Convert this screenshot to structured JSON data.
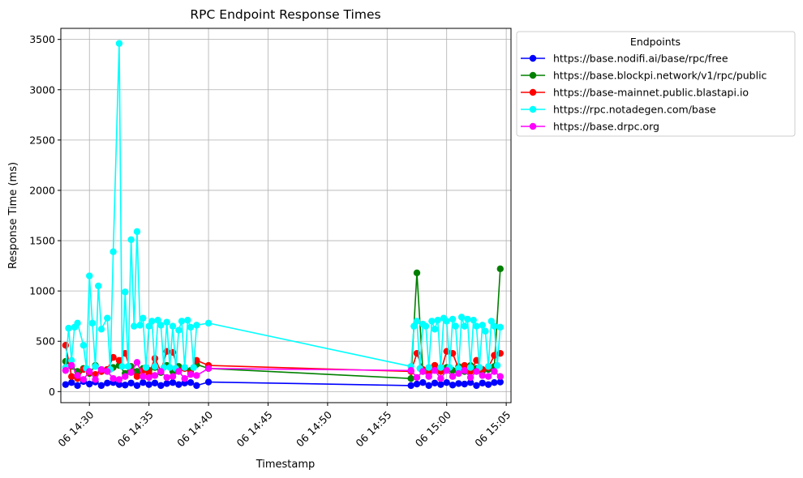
{
  "chart_data": {
    "type": "line",
    "title": "RPC Endpoint Response Times",
    "xlabel": "Timestamp",
    "ylabel": "Response Time (ms)",
    "x_ticks": [
      "06 14:30",
      "06 14:35",
      "06 14:40",
      "06 14:45",
      "06 14:50",
      "06 14:55",
      "06 15:00",
      "06 15:05"
    ],
    "y_ticks": [
      0,
      500,
      1000,
      1500,
      2000,
      2500,
      3000,
      3500
    ],
    "xlim": [
      "14:27:40",
      "14:05:00"
    ],
    "xlim_minutes": [
      867.6,
      905.4
    ],
    "ylim": [
      -110,
      3610
    ],
    "grid": true,
    "legend": {
      "title": "Endpoints",
      "placement": "outside-right-top"
    },
    "series": [
      {
        "name": "https://base.nodifi.ai/base/rpc/free",
        "color": "#0000ff",
        "x": [
          "14:28:00",
          "14:28:30",
          "14:29:00",
          "14:29:30",
          "14:30:00",
          "14:30:30",
          "14:31:00",
          "14:31:30",
          "14:32:00",
          "14:32:30",
          "14:33:00",
          "14:33:30",
          "14:34:00",
          "14:34:30",
          "14:35:00",
          "14:35:30",
          "14:36:00",
          "14:36:30",
          "14:37:00",
          "14:37:30",
          "14:38:00",
          "14:38:30",
          "14:39:00",
          "14:40:00",
          "14:57:00",
          "14:57:30",
          "14:58:00",
          "14:58:30",
          "14:59:00",
          "14:59:30",
          "15:00:00",
          "15:00:30",
          "15:01:00",
          "15:01:30",
          "15:02:00",
          "15:02:30",
          "15:03:00",
          "15:03:30",
          "15:04:00",
          "15:04:30"
        ],
        "y": [
          70,
          90,
          60,
          100,
          75,
          95,
          60,
          85,
          90,
          70,
          65,
          85,
          60,
          90,
          70,
          85,
          60,
          80,
          90,
          70,
          85,
          90,
          60,
          95,
          60,
          75,
          90,
          60,
          85,
          70,
          90,
          65,
          80,
          75,
          90,
          60,
          85,
          70,
          90,
          95
        ]
      },
      {
        "name": "https://base.blockpi.network/v1/rpc/public",
        "color": "#008000",
        "x": [
          "14:28:00",
          "14:28:30",
          "14:29:00",
          "14:29:30",
          "14:30:00",
          "14:30:30",
          "14:31:00",
          "14:31:30",
          "14:32:00",
          "14:32:30",
          "14:33:00",
          "14:33:30",
          "14:34:00",
          "14:34:30",
          "14:35:00",
          "14:35:30",
          "14:36:00",
          "14:36:30",
          "14:37:00",
          "14:37:30",
          "14:38:00",
          "14:38:30",
          "14:39:00",
          "14:40:00",
          "14:57:00",
          "14:57:30",
          "14:58:00",
          "14:58:30",
          "14:59:00",
          "14:59:30",
          "15:00:00",
          "15:00:30",
          "15:01:00",
          "15:01:30",
          "15:02:00",
          "15:02:30",
          "15:03:00",
          "15:03:30",
          "15:04:00",
          "15:04:30"
        ],
        "y": [
          300,
          250,
          200,
          230,
          180,
          260,
          200,
          220,
          240,
          260,
          180,
          250,
          200,
          230,
          210,
          240,
          190,
          260,
          200,
          250,
          230,
          210,
          270,
          230,
          130,
          1180,
          200,
          230,
          260,
          200,
          240,
          210,
          250,
          200,
          260,
          230,
          200,
          220,
          250,
          1220
        ]
      },
      {
        "name": "https://base-mainnet.public.blastapi.io",
        "color": "#ff0000",
        "x": [
          "14:28:00",
          "14:28:30",
          "14:29:00",
          "14:29:30",
          "14:30:00",
          "14:30:30",
          "14:31:00",
          "14:31:30",
          "14:32:00",
          "14:32:30",
          "14:33:00",
          "14:33:30",
          "14:34:00",
          "14:34:30",
          "14:35:00",
          "14:35:30",
          "14:36:00",
          "14:36:30",
          "14:37:00",
          "14:37:30",
          "14:38:00",
          "14:38:30",
          "14:39:00",
          "14:40:00",
          "14:57:00",
          "14:57:30",
          "14:58:00",
          "14:58:30",
          "14:59:00",
          "14:59:30",
          "15:00:00",
          "15:00:30",
          "15:01:00",
          "15:01:30",
          "15:02:00",
          "15:02:30",
          "15:03:00",
          "15:03:30",
          "15:04:00",
          "15:04:30"
        ],
        "y": [
          460,
          150,
          130,
          220,
          190,
          170,
          200,
          220,
          340,
          310,
          380,
          200,
          150,
          210,
          180,
          330,
          200,
          400,
          390,
          210,
          230,
          180,
          310,
          260,
          200,
          380,
          220,
          180,
          260,
          200,
          400,
          380,
          230,
          260,
          200,
          310,
          220,
          240,
          360,
          380
        ]
      },
      {
        "name": "https://rpc.notadegen.com/base",
        "color": "#00ffff",
        "x": [
          "14:28:00",
          "14:28:15",
          "14:28:30",
          "14:28:45",
          "14:29:00",
          "14:29:30",
          "14:29:45",
          "14:30:00",
          "14:30:15",
          "14:30:30",
          "14:30:45",
          "14:31:00",
          "14:31:30",
          "14:31:45",
          "14:32:00",
          "14:32:30",
          "14:32:45",
          "14:33:00",
          "14:33:15",
          "14:33:30",
          "14:33:45",
          "14:34:00",
          "14:34:15",
          "14:34:30",
          "14:34:45",
          "14:35:00",
          "14:35:15",
          "14:35:30",
          "14:35:45",
          "14:36:00",
          "14:36:15",
          "14:36:30",
          "14:36:45",
          "14:37:00",
          "14:37:15",
          "14:37:30",
          "14:37:45",
          "14:38:00",
          "14:38:15",
          "14:38:30",
          "14:38:45",
          "14:39:00",
          "14:40:00",
          "14:57:00",
          "14:57:15",
          "14:57:30",
          "14:57:45",
          "14:58:00",
          "14:58:15",
          "14:58:30",
          "14:58:45",
          "14:59:00",
          "14:59:15",
          "14:59:30",
          "14:59:45",
          "15:00:00",
          "15:00:15",
          "15:00:30",
          "15:00:45",
          "15:01:00",
          "15:01:15",
          "15:01:30",
          "15:01:45",
          "15:02:00",
          "15:02:15",
          "15:02:30",
          "15:02:45",
          "15:03:00",
          "15:03:15",
          "15:03:30",
          "15:03:45",
          "15:04:00",
          "15:04:15",
          "15:04:30"
        ],
        "y": [
          240,
          630,
          310,
          640,
          680,
          460,
          230,
          1150,
          680,
          250,
          1050,
          620,
          730,
          220,
          1390,
          3460,
          250,
          990,
          250,
          1510,
          650,
          1590,
          660,
          730,
          240,
          650,
          700,
          250,
          710,
          660,
          240,
          690,
          240,
          650,
          230,
          610,
          700,
          240,
          710,
          640,
          240,
          660,
          680,
          250,
          650,
          700,
          230,
          670,
          650,
          240,
          700,
          620,
          710,
          240,
          730,
          700,
          240,
          720,
          650,
          230,
          740,
          650,
          720,
          240,
          710,
          650,
          240,
          660,
          600,
          250,
          700,
          650,
          260,
          640
        ]
      },
      {
        "name": "https://base.drpc.org",
        "color": "#ff00ff",
        "x": [
          "14:28:00",
          "14:28:30",
          "14:29:00",
          "14:29:30",
          "14:30:00",
          "14:30:30",
          "14:31:00",
          "14:31:30",
          "14:32:00",
          "14:32:30",
          "14:33:00",
          "14:33:30",
          "14:34:00",
          "14:34:30",
          "14:35:00",
          "14:35:30",
          "14:36:00",
          "14:36:30",
          "14:37:00",
          "14:37:30",
          "14:38:00",
          "14:38:30",
          "14:39:00",
          "14:40:00",
          "14:57:00",
          "14:57:30",
          "14:58:00",
          "14:58:30",
          "14:59:00",
          "14:59:30",
          "15:00:00",
          "15:00:30",
          "15:01:00",
          "15:01:30",
          "15:02:00",
          "15:02:30",
          "15:03:00",
          "15:03:30",
          "15:04:00",
          "15:04:30"
        ],
        "y": [
          210,
          260,
          160,
          120,
          200,
          120,
          220,
          200,
          130,
          120,
          150,
          190,
          290,
          150,
          140,
          160,
          200,
          140,
          150,
          200,
          130,
          170,
          160,
          230,
          210,
          140,
          200,
          150,
          210,
          130,
          210,
          150,
          180,
          210,
          140,
          200,
          160,
          150,
          200,
          150
        ]
      }
    ]
  }
}
